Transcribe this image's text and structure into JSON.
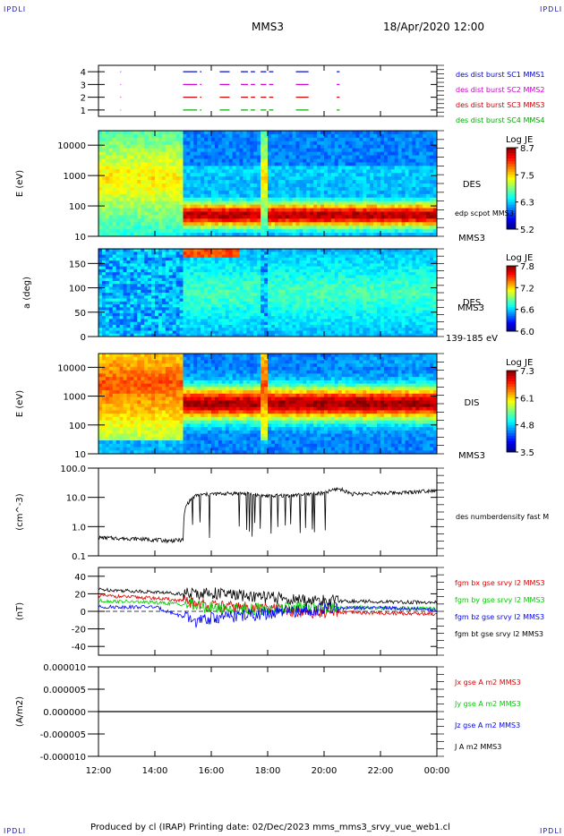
{
  "header": {
    "corner_left_top": "IPDLI",
    "corner_right_top": "IPDLI",
    "spacecraft": "MMS3",
    "datetime": "18/Apr/2020 12:00"
  },
  "footer": {
    "text": "Produced by cl (IRAP)   Printing date: 02/Dec/2023   mms_mms3_srvy_vue_web1.cl",
    "corner_left_bottom": "IPDLI",
    "corner_right_bottom": "IPDLI"
  },
  "colors": {
    "c1": "#0000cc",
    "c2": "#cc00cc",
    "c3": "#cc0000",
    "c4": "#00aa00",
    "bx": "#e00000",
    "by": "#00cc00",
    "bz": "#0000ff",
    "bt": "#000000"
  },
  "time_axis": {
    "ticks": [
      "12:00",
      "14:00",
      "16:00",
      "18:00",
      "20:00",
      "22:00",
      "00:00"
    ],
    "hours": [
      12,
      14,
      16,
      18,
      20,
      22,
      24
    ],
    "range_hours": [
      12,
      24
    ]
  },
  "chart_data": [
    {
      "type": "scatter",
      "id": "burst",
      "ylim": [
        0.5,
        4.5
      ],
      "y_ticks": [
        "4",
        "3",
        "2",
        "1"
      ],
      "y_tick_values": [
        4,
        3,
        2,
        1
      ],
      "legend": [
        {
          "label": "des dist burst SC1 MMS1",
          "color": "#0000cc"
        },
        {
          "label": "des dist burst SC2 MMS2",
          "color": "#cc00cc"
        },
        {
          "label": "des dist burst SC3 MMS3",
          "color": "#cc0000"
        },
        {
          "label": "des dist burst SC4 MMS4",
          "color": "#00aa00"
        }
      ],
      "intervals_hours": [
        [
          12.78,
          12.8
        ],
        [
          15.0,
          15.5
        ],
        [
          15.6,
          15.65
        ],
        [
          16.3,
          16.65
        ],
        [
          17.05,
          17.3
        ],
        [
          17.4,
          17.55
        ],
        [
          17.75,
          17.95
        ],
        [
          18.05,
          18.2
        ],
        [
          19.0,
          19.45
        ],
        [
          20.45,
          20.55
        ]
      ]
    },
    {
      "type": "heatmap",
      "id": "des_energy",
      "ylabel": "E (eV)",
      "scale": "log",
      "ylim": [
        10,
        30000
      ],
      "y_ticks": [
        "10000",
        "1000",
        "100",
        "10"
      ],
      "y_tick_values": [
        10000,
        1000,
        100,
        10
      ],
      "colorbar": {
        "label": "Log JE",
        "ticks": [
          "8.7",
          "7.5",
          "6.3",
          "5.2"
        ]
      },
      "right_label": "DES",
      "right_label_small": "edp scpot MMS3",
      "right_label_bottom": "MMS3"
    },
    {
      "type": "heatmap",
      "id": "des_pitch",
      "ylabel": "a (deg)",
      "ylim": [
        0,
        180
      ],
      "y_ticks": [
        "150",
        "100",
        "50",
        "0"
      ],
      "y_tick_values": [
        150,
        100,
        50,
        0
      ],
      "colorbar": {
        "label": "Log JE",
        "ticks": [
          "7.8",
          "7.2",
          "6.6",
          "6.0"
        ]
      },
      "right_label": "DES",
      "right_label_mid": "MMS3",
      "right_label_bottom": "139-185 eV"
    },
    {
      "type": "heatmap",
      "id": "dis_energy",
      "ylabel": "E (eV)",
      "scale": "log",
      "ylim": [
        10,
        30000
      ],
      "y_ticks": [
        "10000",
        "1000",
        "100",
        "10"
      ],
      "y_tick_values": [
        10000,
        1000,
        100,
        10
      ],
      "colorbar": {
        "label": "Log JE",
        "ticks": [
          "7.3",
          "6.1",
          "4.8",
          "3.5"
        ]
      },
      "right_label": "DIS",
      "right_label_bottom": "MMS3"
    },
    {
      "type": "line",
      "id": "density",
      "ylabel": "(cm^-3)",
      "scale": "log",
      "ylim": [
        0.1,
        100
      ],
      "y_ticks": [
        "100.0",
        "10.0",
        "1.0",
        "0.1"
      ],
      "y_tick_values": [
        100,
        10,
        1,
        0.1
      ],
      "series": [
        {
          "name": "des numberdensity fast M",
          "color": "#000000"
        }
      ],
      "knots": [
        [
          12.0,
          0.42
        ],
        [
          13.5,
          0.38
        ],
        [
          14.5,
          0.33
        ],
        [
          15.0,
          0.35
        ],
        [
          15.1,
          5
        ],
        [
          15.3,
          9
        ],
        [
          15.5,
          12
        ],
        [
          16.0,
          13
        ],
        [
          17.0,
          14
        ],
        [
          18.0,
          11
        ],
        [
          19.0,
          12
        ],
        [
          20.0,
          14
        ],
        [
          20.5,
          20
        ],
        [
          21.0,
          13
        ],
        [
          22.0,
          14
        ],
        [
          23.0,
          15
        ],
        [
          24.0,
          18
        ]
      ]
    },
    {
      "type": "line",
      "id": "magnetic",
      "ylabel": "(nT)",
      "ylim": [
        -50,
        50
      ],
      "y_ticks": [
        "40",
        "20",
        "0",
        "-20",
        "-40"
      ],
      "y_tick_values": [
        40,
        20,
        0,
        -20,
        -40
      ],
      "series": [
        {
          "name": "fgm bx gse srvy l2 MMS3",
          "color": "#e00000",
          "knots": [
            [
              12.0,
              18
            ],
            [
              14.0,
              15
            ],
            [
              15.0,
              12
            ],
            [
              16.0,
              6
            ],
            [
              18.0,
              3
            ],
            [
              19.0,
              0
            ],
            [
              20.0,
              -1
            ],
            [
              22.0,
              -2
            ],
            [
              24.0,
              -3
            ]
          ]
        },
        {
          "name": "fgm by gse srvy l2 MMS3",
          "color": "#00cc00",
          "knots": [
            [
              12.0,
              12
            ],
            [
              14.0,
              10
            ],
            [
              15.0,
              8
            ],
            [
              16.0,
              4
            ],
            [
              18.0,
              2
            ],
            [
              19.0,
              4
            ],
            [
              20.0,
              5
            ],
            [
              22.0,
              4
            ],
            [
              24.0,
              3
            ]
          ]
        },
        {
          "name": "fgm bz gse srvy l2 MMS3",
          "color": "#0000ff",
          "knots": [
            [
              12.0,
              5
            ],
            [
              14.0,
              5
            ],
            [
              15.0,
              -6
            ],
            [
              15.5,
              -12
            ],
            [
              16.0,
              -8
            ],
            [
              17.0,
              -5
            ],
            [
              18.0,
              -3
            ],
            [
              19.0,
              0
            ],
            [
              20.0,
              3
            ],
            [
              22.0,
              4
            ],
            [
              24.0,
              2
            ]
          ]
        },
        {
          "name": "fgm bt gse srvy l2 MMS3",
          "color": "#000000",
          "knots": [
            [
              12.0,
              25
            ],
            [
              14.0,
              22
            ],
            [
              15.0,
              20
            ],
            [
              16.0,
              21
            ],
            [
              17.0,
              18
            ],
            [
              18.0,
              16
            ],
            [
              19.0,
              13
            ],
            [
              20.0,
              12
            ],
            [
              22.0,
              11
            ],
            [
              24.0,
              10
            ]
          ]
        }
      ]
    },
    {
      "type": "line",
      "id": "current",
      "ylabel": "(A/m2)",
      "ylim": [
        -1e-05,
        1e-05
      ],
      "y_ticks": [
        "0.000010",
        "0.000005",
        "0.000000",
        "-0.000005",
        "-0.000010"
      ],
      "y_tick_values": [
        1e-05,
        5e-06,
        0,
        -5e-06,
        -1e-05
      ],
      "series": [
        {
          "name": "Jx gse A m2 MMS3",
          "color": "#e00000"
        },
        {
          "name": "Jy gse A m2 MMS3",
          "color": "#00cc00"
        },
        {
          "name": "Jz gse A m2 MMS3",
          "color": "#0000ff"
        },
        {
          "name": "J A m2 MMS3",
          "color": "#000000"
        }
      ],
      "values": [
        0,
        0
      ]
    }
  ]
}
